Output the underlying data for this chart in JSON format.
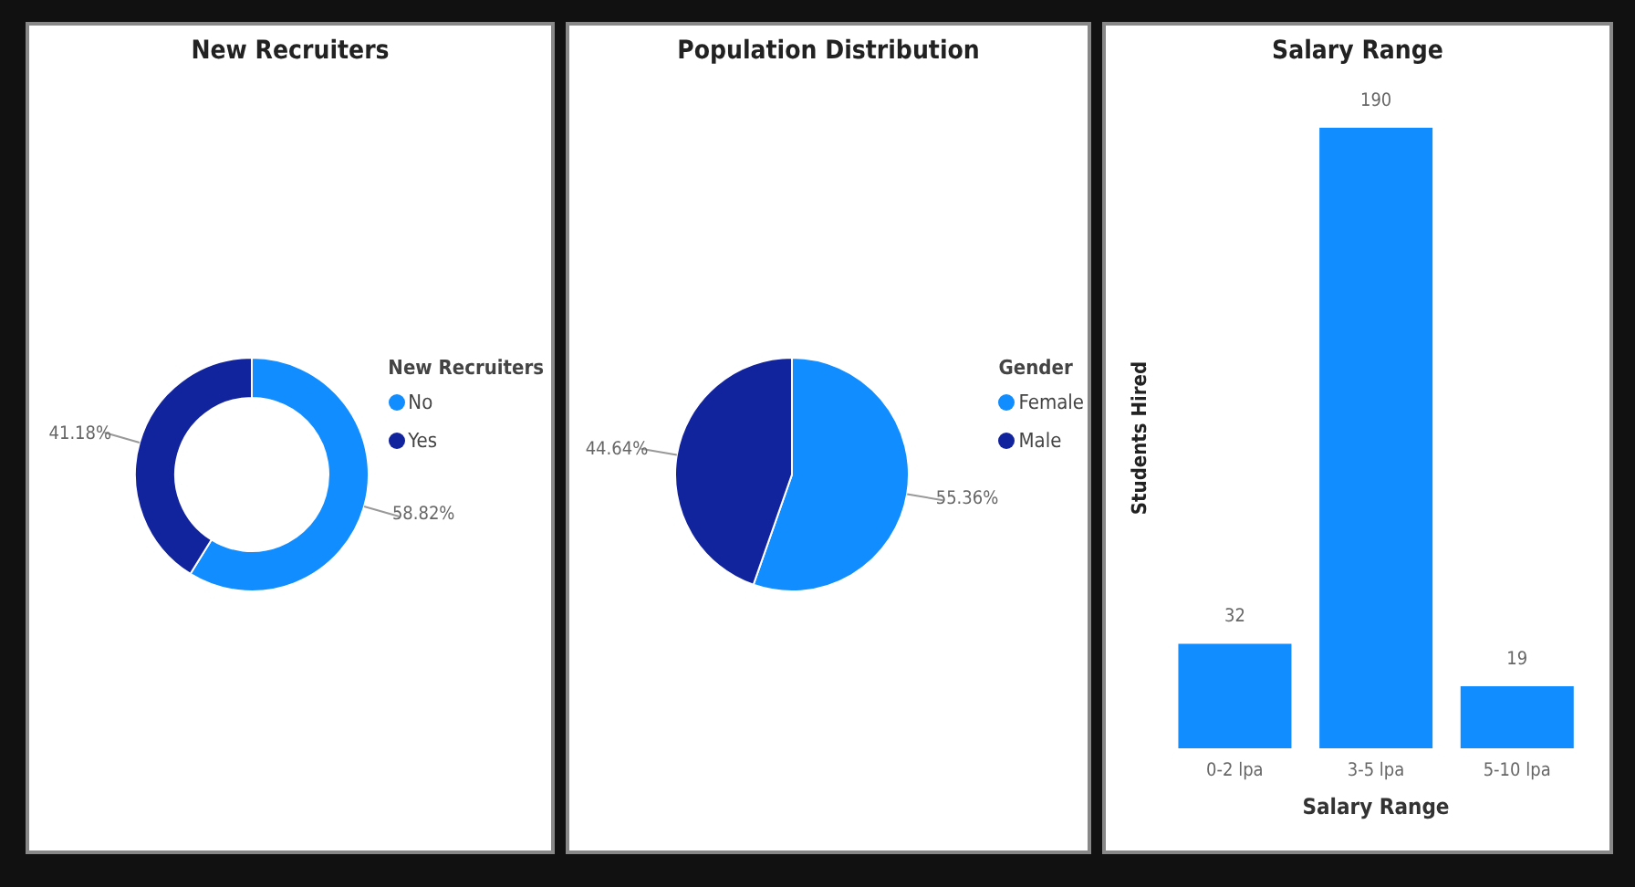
{
  "chart_data": [
    {
      "type": "donut",
      "title": "New Recruiters",
      "legend_title": "New Recruiters",
      "categories": [
        "No",
        "Yes"
      ],
      "values": [
        58.82,
        41.18
      ],
      "colors": [
        "#118dff",
        "#12239e"
      ],
      "value_labels": [
        "58.82%",
        "41.18%"
      ],
      "legend": "right"
    },
    {
      "type": "pie",
      "title": "Population Distribution",
      "legend_title": "Gender",
      "categories": [
        "Female",
        "Male"
      ],
      "values": [
        55.36,
        44.64
      ],
      "colors": [
        "#118dff",
        "#12239e"
      ],
      "value_labels": [
        "55.36%",
        "44.64%"
      ],
      "legend": "right"
    },
    {
      "type": "bar",
      "title": "Salary Range",
      "xlabel": "Salary Range",
      "ylabel": "Students Hired",
      "categories": [
        "0-2 lpa",
        "3-5 lpa",
        "5-10 lpa"
      ],
      "values": [
        32,
        190,
        19
      ],
      "color": "#118dff",
      "data_labels": true,
      "tick_labels": "x"
    }
  ]
}
